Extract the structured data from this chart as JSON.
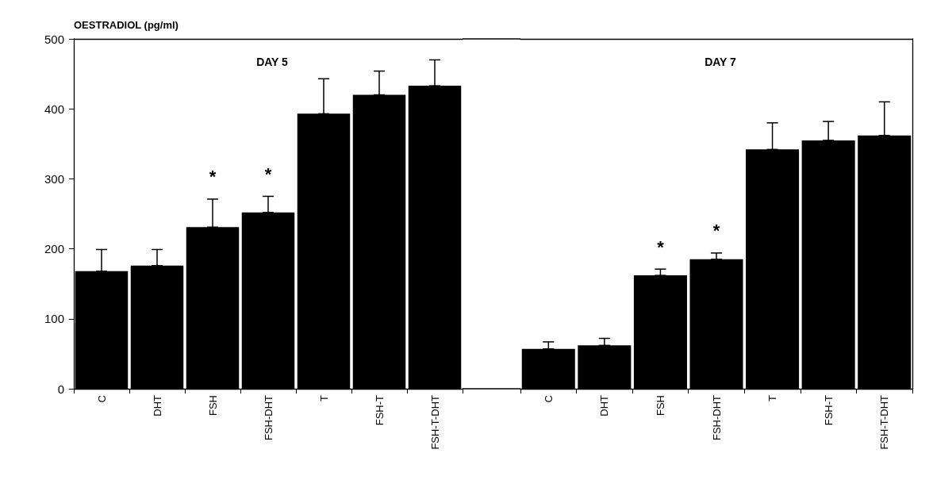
{
  "chart_data": [
    {
      "type": "bar",
      "title": "DAY 5",
      "ylabel": "OESTRADIOL (pg/ml)",
      "color": "#000000",
      "categories": [
        "C",
        "DHT",
        "FSH",
        "FSH-DHT",
        "T",
        "FSH-T",
        "FSH-T-DHT"
      ],
      "values": [
        168,
        176,
        231,
        252,
        393,
        420,
        433
      ],
      "errors": [
        [
          168,
          199
        ],
        [
          176,
          199
        ],
        [
          231,
          271
        ],
        [
          252,
          275
        ],
        [
          393,
          443
        ],
        [
          420,
          454
        ],
        [
          433,
          470
        ]
      ],
      "ylim": [
        0,
        500
      ],
      "yticks": [
        0,
        100,
        200,
        300,
        400,
        500
      ],
      "annotations": [
        {
          "text": "*",
          "x": "FSH",
          "y": 271
        },
        {
          "text": "*",
          "x": "FSH-DHT",
          "y": 275
        }
      ]
    },
    {
      "type": "bar",
      "title": "DAY 7",
      "color": "#000000",
      "categories": [
        "C",
        "DHT",
        "FSH",
        "FSH-DHT",
        "T",
        "FSH-T",
        "FSH-T-DHT"
      ],
      "values": [
        57,
        62,
        162,
        185,
        342,
        355,
        362
      ],
      "errors": [
        [
          57,
          67
        ],
        [
          62,
          72
        ],
        [
          162,
          171
        ],
        [
          185,
          194
        ],
        [
          342,
          380
        ],
        [
          355,
          382
        ],
        [
          362,
          410
        ]
      ],
      "ylim": [
        0,
        500
      ],
      "yticks": [
        0,
        100,
        200,
        300,
        400,
        500
      ],
      "tick_labels": "x",
      "annotations": [
        {
          "text": "*",
          "x": "FSH",
          "y": 171
        },
        {
          "text": "*",
          "x": "FSH-DHT",
          "y": 194
        }
      ]
    }
  ]
}
